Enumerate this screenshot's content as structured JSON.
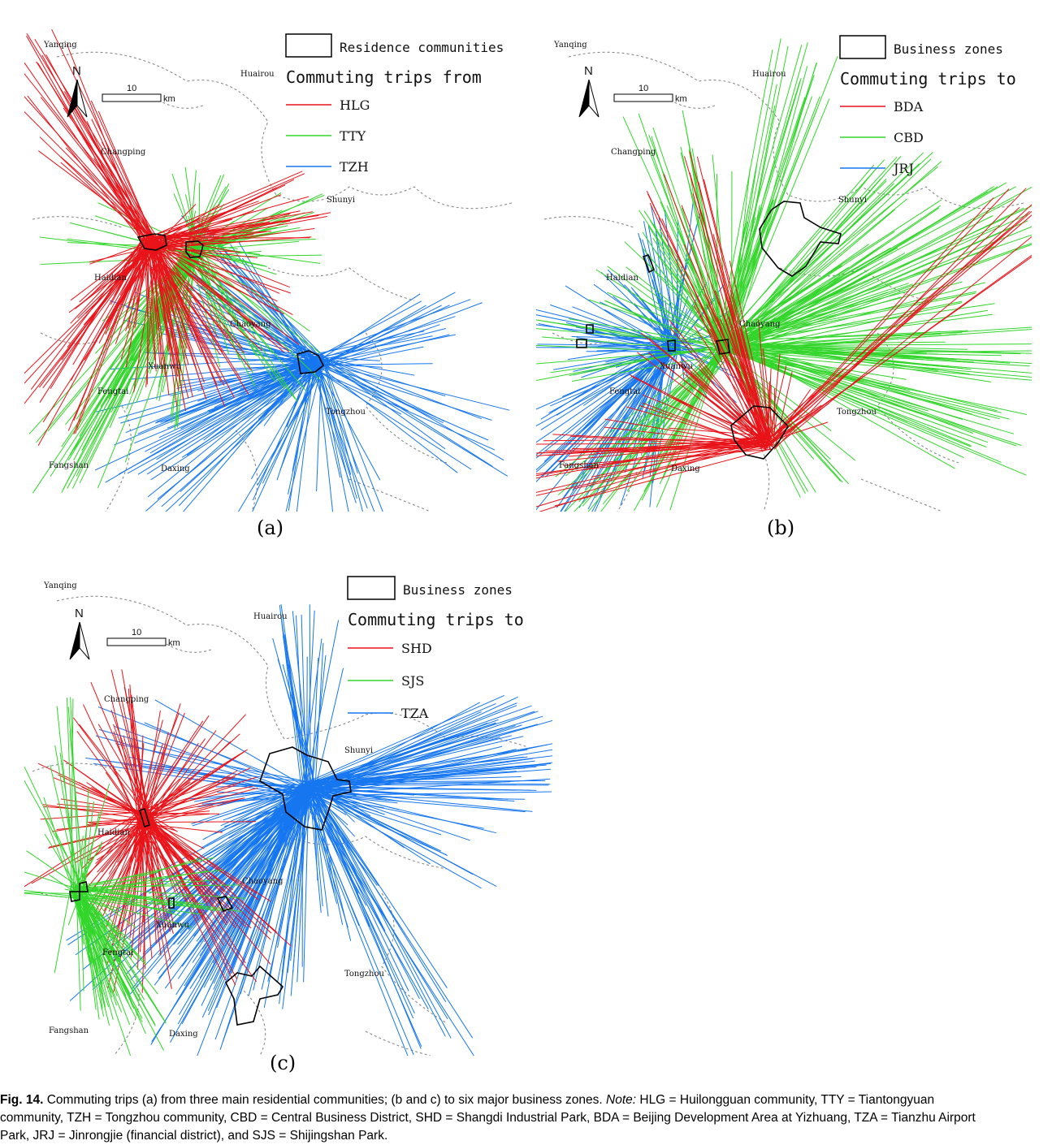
{
  "header": "",
  "north_label": "N",
  "scale_value": "10",
  "scale_unit": "km",
  "colors": {
    "red": "#e8141a",
    "green": "#33d62b",
    "blue": "#1677f0",
    "boundary": "#8a8a8a"
  },
  "panels": [
    {
      "id": "a",
      "label": "(a)",
      "legend_box_label": "Residence communities",
      "legend_title": "Commuting trips from",
      "legend_items": [
        {
          "label": "HLG",
          "color": "red"
        },
        {
          "label": "TTY",
          "color": "green"
        },
        {
          "label": "TZH",
          "color": "blue"
        }
      ],
      "places": [
        "Yanqing",
        "Huairou",
        "Changping",
        "Shunyi",
        "Haidian",
        "Chaoyang",
        "Xuanwu",
        "Fengtai",
        "Tongzhou",
        "Fangshan",
        "Daxing"
      ]
    },
    {
      "id": "b",
      "label": "(b)",
      "legend_box_label": "Business zones",
      "legend_title": "Commuting trips to",
      "legend_items": [
        {
          "label": "BDA",
          "color": "red"
        },
        {
          "label": "CBD",
          "color": "green"
        },
        {
          "label": "JRJ",
          "color": "blue"
        }
      ],
      "places": [
        "Yanqing",
        "Huairou",
        "Changping",
        "Shunyi",
        "Haidian",
        "Chaoyang",
        "Xuanwu",
        "Fengtai",
        "Tongzhou",
        "Fangshan",
        "Daxing"
      ]
    },
    {
      "id": "c",
      "label": "(c)",
      "legend_box_label": "Business zones",
      "legend_title": "Commuting trips to",
      "legend_items": [
        {
          "label": "SHD",
          "color": "red"
        },
        {
          "label": "SJS",
          "color": "green"
        },
        {
          "label": "TZA",
          "color": "blue"
        }
      ],
      "places": [
        "Yanqing",
        "Huairou",
        "Changping",
        "Shunyi",
        "Haidian",
        "Chaoyang",
        "Xuanwu",
        "Fengtai",
        "Tongzhou",
        "Fangshan",
        "Daxing"
      ]
    }
  ],
  "caption": {
    "fig": "Fig. 14.",
    "text": " Commuting trips (a) from three main residential communities; (b and c) to six major business zones. ",
    "note_label": "Note:",
    "line1_rest": " HLG = Huilongguan community, TTY = Tiantongyuan",
    "line2": "community, TZH = Tongzhou community, CBD = Central Business District, SHD = Shangdi Industrial Park, BDA = Beijing Development Area at Yizhuang, TZA = Tianzhu Airport",
    "line3": "Park, JRJ = Jinrongjie (financial district), and SJS = Shijingshan Park."
  }
}
